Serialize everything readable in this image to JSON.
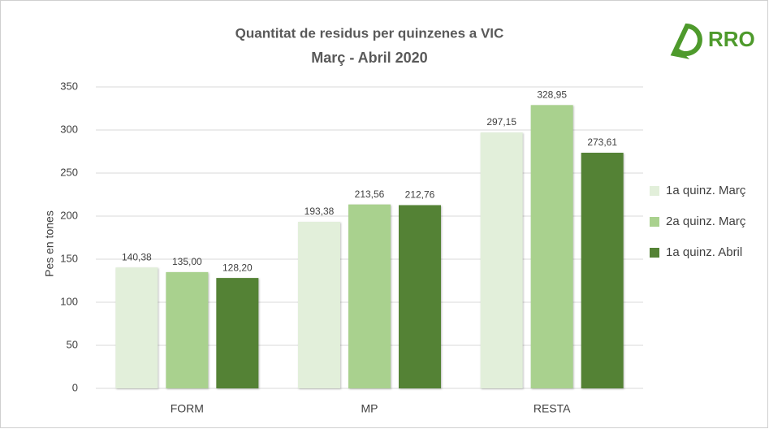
{
  "logo": "RRO",
  "chart_data": {
    "type": "bar",
    "title": "Quantitat de residus per quinzenes a VIC",
    "subtitle": "Març - Abril 2020",
    "y_label": "Pes en tones",
    "categories": [
      "FORM",
      "MP",
      "RESTA"
    ],
    "series": [
      {
        "name": "1a quinz. Març",
        "color": "#e2efda",
        "values": [
          140.38,
          193.38,
          297.15
        ],
        "value_labels": [
          "140,38",
          "193,38",
          "297,15"
        ]
      },
      {
        "name": "2a quinz. Març",
        "color": "#a9d18e",
        "values": [
          135.0,
          213.56,
          328.95
        ],
        "value_labels": [
          "135,00",
          "213,56",
          "328,95"
        ]
      },
      {
        "name": "1a quinz. Abril",
        "color": "#548235",
        "values": [
          128.2,
          212.76,
          273.61
        ],
        "value_labels": [
          "128,20",
          "212,76",
          "273,61"
        ]
      }
    ],
    "ylim": [
      0,
      350
    ],
    "yticks": [
      0,
      50,
      100,
      150,
      200,
      250,
      300,
      350
    ],
    "grid": true,
    "legend": "right"
  }
}
